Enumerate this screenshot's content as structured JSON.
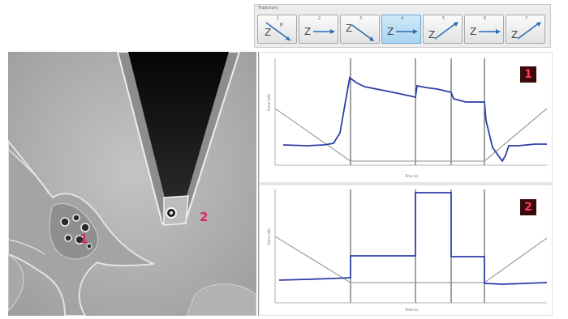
{
  "toolbar": {
    "title": "Trajectory",
    "segments": [
      {
        "number": "1",
        "icon": "approach-descent-icon",
        "selected": false
      },
      {
        "number": "2",
        "icon": "pause-icon",
        "selected": false
      },
      {
        "number": "3",
        "icon": "descent-icon",
        "selected": false
      },
      {
        "number": "4",
        "icon": "pause-icon",
        "selected": true
      },
      {
        "number": "5",
        "icon": "retract-icon",
        "selected": false
      },
      {
        "number": "6",
        "icon": "pause-icon",
        "selected": false
      },
      {
        "number": "7",
        "icon": "retract-icon",
        "selected": false
      }
    ]
  },
  "image": {
    "cell_label": "1",
    "probe_label": "2"
  },
  "plots": [
    {
      "badge": "1",
      "ylabel": "Force (nN)",
      "xlabel": "Time (s)",
      "trace_color": "#2d3fa8",
      "piezo_color": "#8a8a8a"
    },
    {
      "badge": "2",
      "ylabel": "Force (nN)",
      "xlabel": "Time (s)",
      "trace_color": "#2d3fa8",
      "piezo_color": "#8a8a8a"
    }
  ],
  "colors": {
    "accent": "#a9d3f0",
    "label": "#d42a5a",
    "badge_bg": "#3b0a0a",
    "badge_text": "#ff3a62"
  }
}
